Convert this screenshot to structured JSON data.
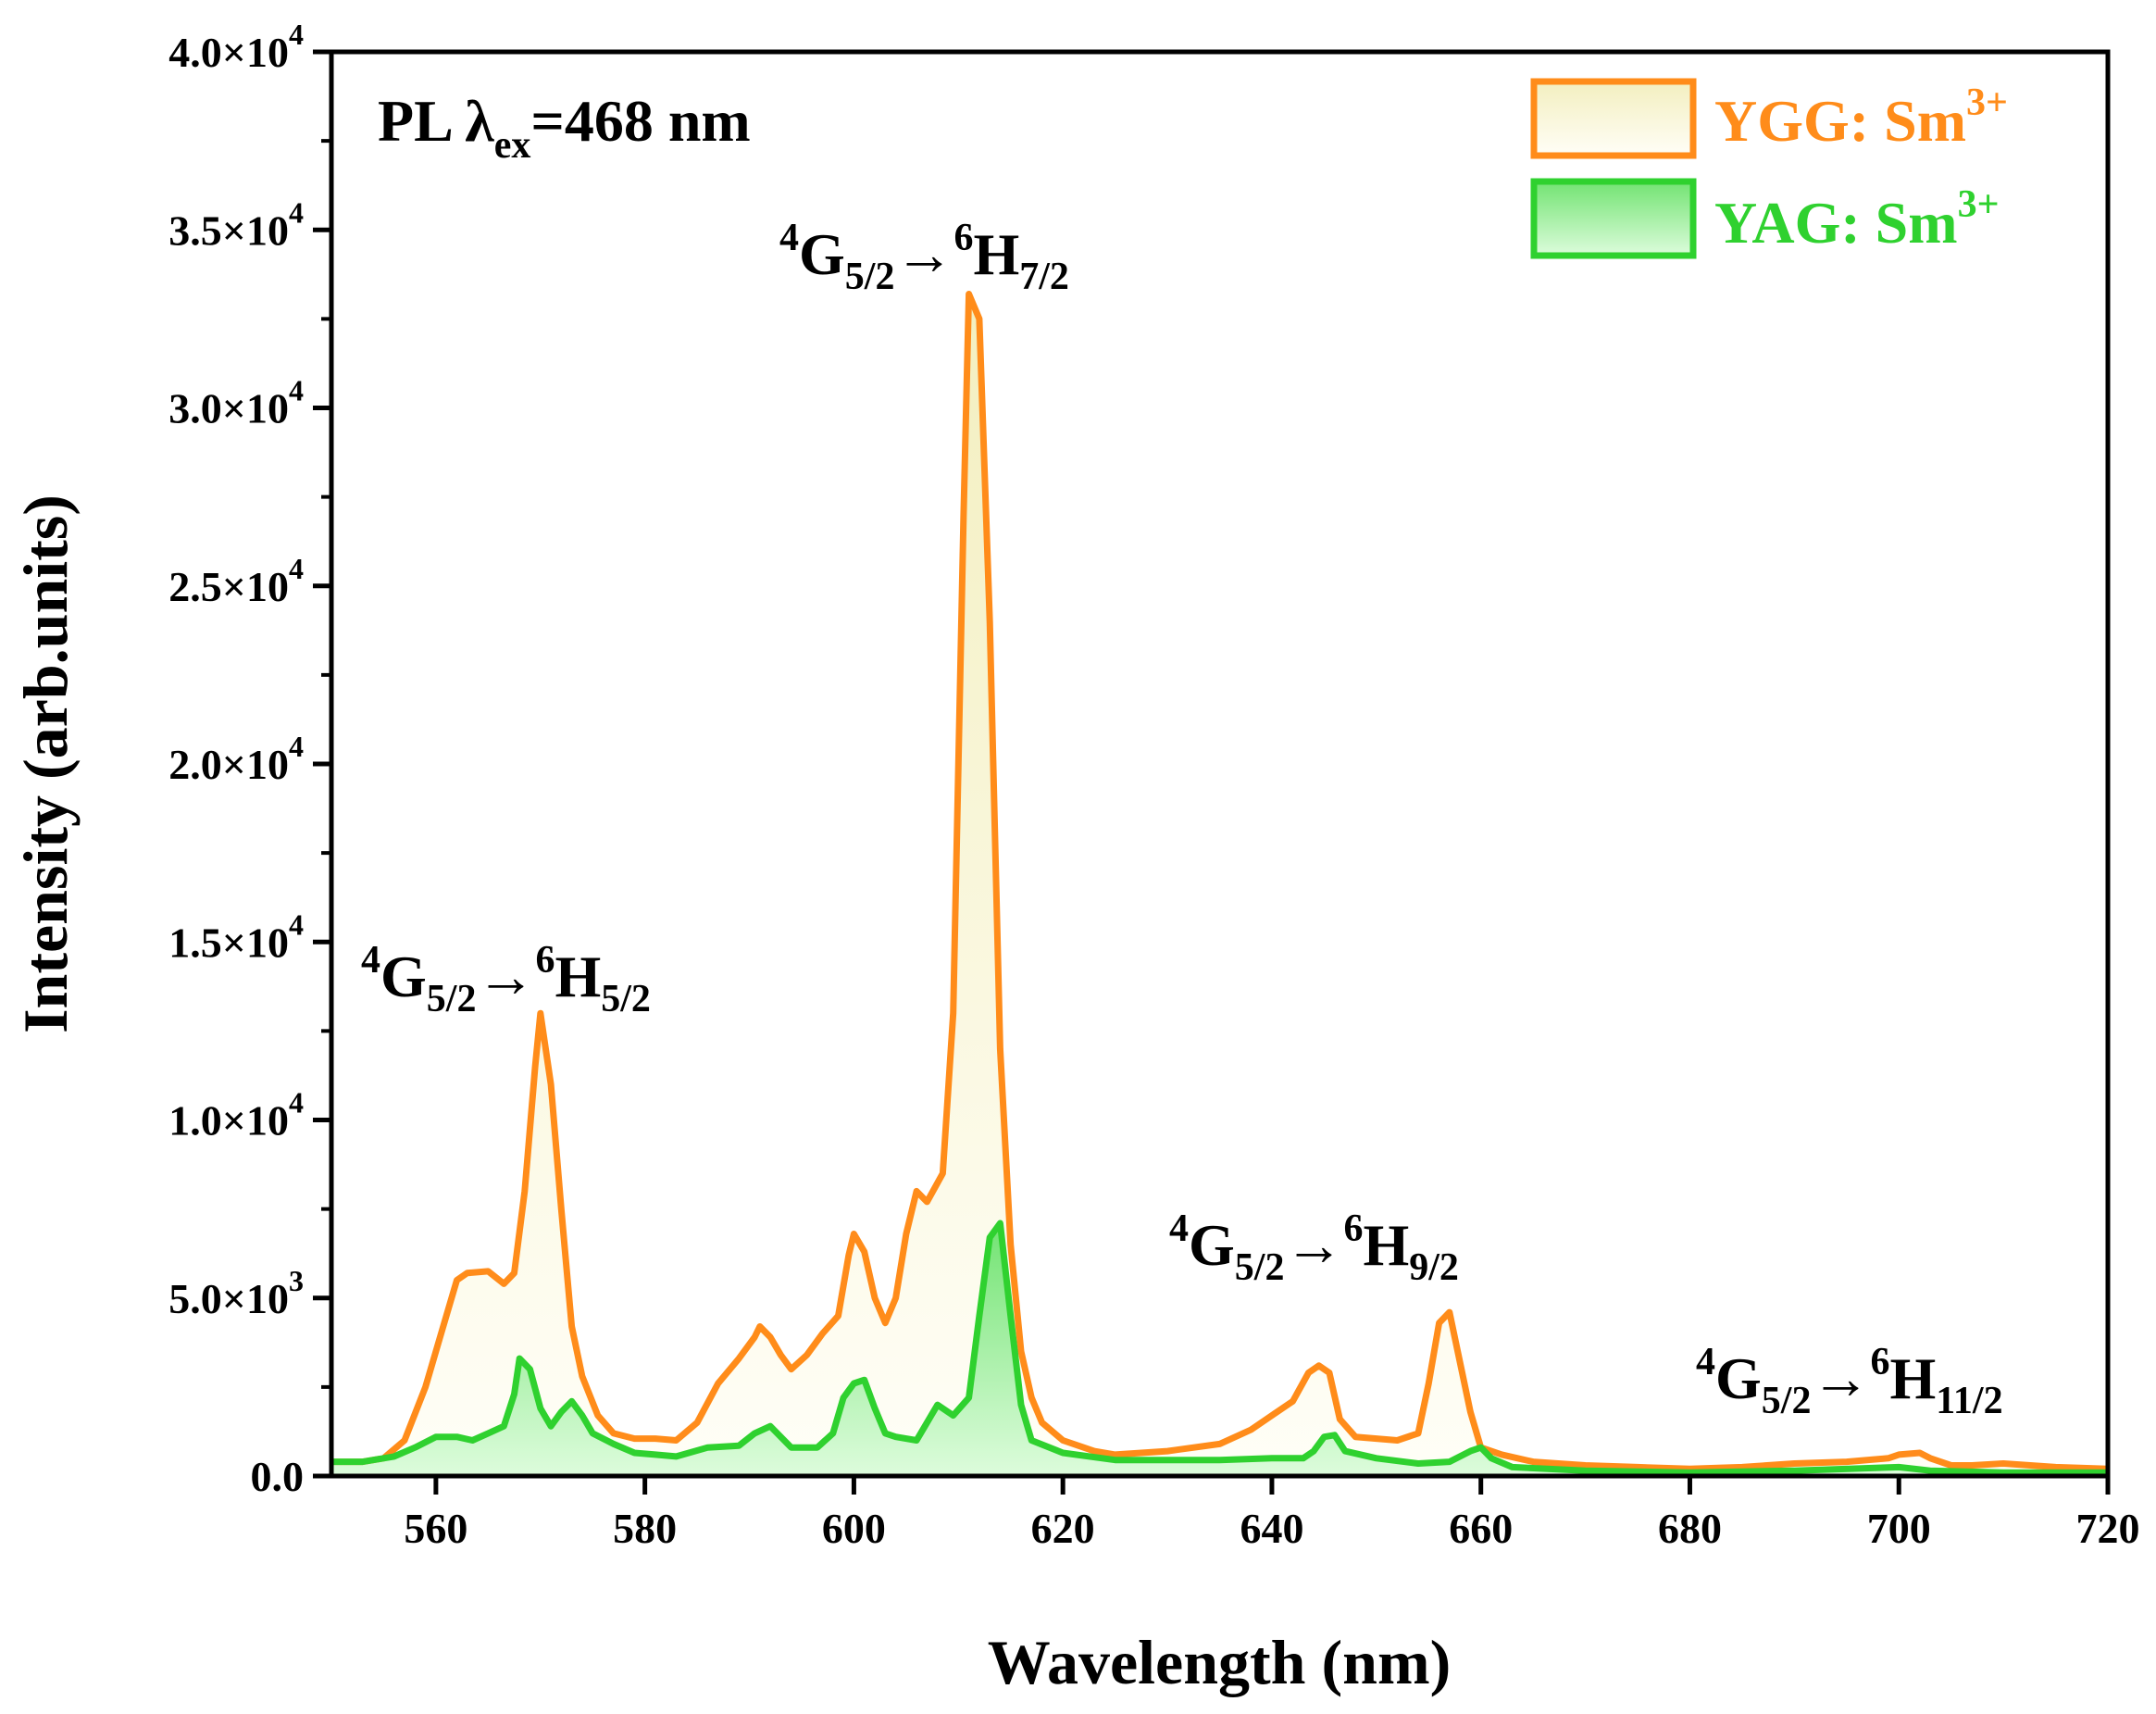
{
  "chart_data": {
    "type": "area",
    "title": "",
    "xlabel": "Wavelength (nm)",
    "ylabel": "Intensity (arb.units)",
    "xlim": [
      550,
      720
    ],
    "ylim": [
      0,
      40000
    ],
    "xticks": [
      560,
      580,
      600,
      620,
      640,
      660,
      680,
      700,
      720
    ],
    "xtick_labels": [
      "560",
      "580",
      "600",
      "620",
      "640",
      "660",
      "680",
      "700",
      "720"
    ],
    "yticks": [
      0,
      5000,
      10000,
      15000,
      20000,
      25000,
      30000,
      35000,
      40000
    ],
    "ytick_labels": [
      {
        "mant": "0.0",
        "exp": ""
      },
      {
        "mant": "5.0×10",
        "exp": "3"
      },
      {
        "mant": "1.0×10",
        "exp": "4"
      },
      {
        "mant": "1.5×10",
        "exp": "4"
      },
      {
        "mant": "2.0×10",
        "exp": "4"
      },
      {
        "mant": "2.5×10",
        "exp": "4"
      },
      {
        "mant": "3.0×10",
        "exp": "4"
      },
      {
        "mant": "3.5×10",
        "exp": "4"
      },
      {
        "mant": "4.0×10",
        "exp": "4"
      }
    ],
    "legend_position": "top-right",
    "annotation_text": {
      "pl": "PL λ",
      "pl_sub": "ex",
      "pl_rest": "=468 nm"
    },
    "transitions": [
      {
        "sup1": "4",
        "g": "G",
        "sub1": "5/2",
        "arrow": "→",
        "sup2": "6",
        "h": "H",
        "sub2": "5/2"
      },
      {
        "sup1": "4",
        "g": "G",
        "sub1": "5/2",
        "arrow": "→",
        "sup2": "6",
        "h": "H",
        "sub2": "7/2"
      },
      {
        "sup1": "4",
        "g": "G",
        "sub1": "5/2",
        "arrow": "→",
        "sup2": "6",
        "h": "H",
        "sub2": "9/2"
      },
      {
        "sup1": "4",
        "g": "G",
        "sub1": "5/2",
        "arrow": "→",
        "sup2": "6",
        "h": "H",
        "sub2": "11/2"
      }
    ],
    "series": [
      {
        "name": "YGG: Sm",
        "name_sup": "3+",
        "line_color": "#ff8c1a",
        "fill_top": "#f3efbf",
        "fill_bottom": "#fffef7",
        "points": [
          [
            550,
            400
          ],
          [
            553,
            400
          ],
          [
            555,
            500
          ],
          [
            557,
            1000
          ],
          [
            559,
            2500
          ],
          [
            560.5,
            4000
          ],
          [
            562,
            5500
          ],
          [
            563,
            5700
          ],
          [
            565,
            5750
          ],
          [
            566.5,
            5400
          ],
          [
            567.5,
            5700
          ],
          [
            568.5,
            8000
          ],
          [
            569.5,
            11500
          ],
          [
            570,
            13000
          ],
          [
            571,
            11000
          ],
          [
            572,
            7500
          ],
          [
            573,
            4200
          ],
          [
            574,
            2800
          ],
          [
            575.5,
            1700
          ],
          [
            577,
            1200
          ],
          [
            579,
            1050
          ],
          [
            581,
            1050
          ],
          [
            583,
            1000
          ],
          [
            585,
            1500
          ],
          [
            587,
            2600
          ],
          [
            589,
            3300
          ],
          [
            590.5,
            3900
          ],
          [
            591,
            4200
          ],
          [
            592,
            3900
          ],
          [
            593,
            3400
          ],
          [
            594,
            3000
          ],
          [
            595.5,
            3400
          ],
          [
            597,
            4000
          ],
          [
            598.5,
            4500
          ],
          [
            599.5,
            6200
          ],
          [
            600,
            6800
          ],
          [
            601,
            6300
          ],
          [
            602,
            5000
          ],
          [
            603,
            4300
          ],
          [
            604,
            5000
          ],
          [
            605,
            6800
          ],
          [
            606,
            8000
          ],
          [
            607,
            7700
          ],
          [
            608.5,
            8500
          ],
          [
            609.5,
            13000
          ],
          [
            610.5,
            27000
          ],
          [
            611,
            33200
          ],
          [
            612,
            32500
          ],
          [
            613,
            24000
          ],
          [
            614,
            12000
          ],
          [
            615,
            6500
          ],
          [
            616,
            3500
          ],
          [
            617,
            2200
          ],
          [
            618,
            1500
          ],
          [
            620,
            1000
          ],
          [
            623,
            700
          ],
          [
            625,
            600
          ],
          [
            630,
            700
          ],
          [
            635,
            900
          ],
          [
            638,
            1300
          ],
          [
            640,
            1700
          ],
          [
            642,
            2100
          ],
          [
            643.5,
            2900
          ],
          [
            644.5,
            3100
          ],
          [
            645.5,
            2900
          ],
          [
            646.5,
            1600
          ],
          [
            648,
            1100
          ],
          [
            652,
            1000
          ],
          [
            654,
            1200
          ],
          [
            655,
            2600
          ],
          [
            656,
            4300
          ],
          [
            657,
            4600
          ],
          [
            658,
            3200
          ],
          [
            659,
            1800
          ],
          [
            660,
            800
          ],
          [
            662,
            600
          ],
          [
            665,
            400
          ],
          [
            670,
            300
          ],
          [
            675,
            250
          ],
          [
            680,
            200
          ],
          [
            685,
            250
          ],
          [
            690,
            350
          ],
          [
            695,
            400
          ],
          [
            699,
            500
          ],
          [
            700,
            600
          ],
          [
            702,
            650
          ],
          [
            703,
            500
          ],
          [
            705,
            300
          ],
          [
            707,
            300
          ],
          [
            710,
            350
          ],
          [
            715,
            250
          ],
          [
            720,
            200
          ]
        ]
      },
      {
        "name": "YAG: Sm",
        "name_sup": "3+",
        "line_color": "#2fd12f",
        "fill_top": "#72e372",
        "fill_bottom": "#ddfcdc",
        "points": [
          [
            550,
            400
          ],
          [
            553,
            400
          ],
          [
            556,
            550
          ],
          [
            558,
            800
          ],
          [
            560,
            1100
          ],
          [
            562,
            1100
          ],
          [
            563.5,
            1000
          ],
          [
            565,
            1200
          ],
          [
            566.5,
            1400
          ],
          [
            567.5,
            2300
          ],
          [
            568,
            3300
          ],
          [
            569,
            3000
          ],
          [
            570,
            1900
          ],
          [
            571,
            1400
          ],
          [
            572,
            1800
          ],
          [
            573,
            2100
          ],
          [
            574,
            1700
          ],
          [
            575,
            1200
          ],
          [
            577,
            900
          ],
          [
            579,
            650
          ],
          [
            581,
            600
          ],
          [
            583,
            550
          ],
          [
            586,
            800
          ],
          [
            589,
            850
          ],
          [
            590.5,
            1200
          ],
          [
            592,
            1400
          ],
          [
            593,
            1100
          ],
          [
            594,
            800
          ],
          [
            596.5,
            800
          ],
          [
            598,
            1200
          ],
          [
            599,
            2200
          ],
          [
            600,
            2600
          ],
          [
            601,
            2700
          ],
          [
            602,
            1900
          ],
          [
            603,
            1200
          ],
          [
            604,
            1100
          ],
          [
            606,
            1000
          ],
          [
            607,
            1500
          ],
          [
            608,
            2000
          ],
          [
            609.5,
            1700
          ],
          [
            611,
            2200
          ],
          [
            612,
            4500
          ],
          [
            613,
            6700
          ],
          [
            614,
            7100
          ],
          [
            615,
            4500
          ],
          [
            616,
            2000
          ],
          [
            617,
            1000
          ],
          [
            620,
            650
          ],
          [
            625,
            450
          ],
          [
            630,
            450
          ],
          [
            635,
            450
          ],
          [
            640,
            500
          ],
          [
            643,
            500
          ],
          [
            644,
            700
          ],
          [
            645,
            1100
          ],
          [
            646,
            1150
          ],
          [
            647,
            700
          ],
          [
            650,
            500
          ],
          [
            654,
            350
          ],
          [
            657,
            400
          ],
          [
            659,
            700
          ],
          [
            660,
            800
          ],
          [
            661,
            500
          ],
          [
            663,
            250
          ],
          [
            670,
            150
          ],
          [
            680,
            100
          ],
          [
            690,
            150
          ],
          [
            700,
            250
          ],
          [
            703,
            150
          ],
          [
            710,
            100
          ],
          [
            720,
            100
          ]
        ]
      }
    ]
  }
}
